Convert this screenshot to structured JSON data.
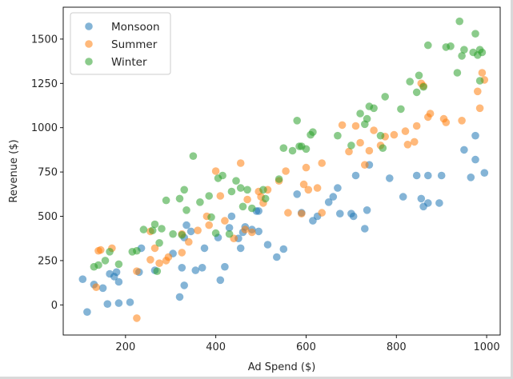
{
  "chart_data": {
    "type": "scatter",
    "title": "",
    "xlabel": "Ad Spend ($)",
    "ylabel": "Revenue ($)",
    "xlim": [
      62,
      1030
    ],
    "ylim": [
      -170,
      1680
    ],
    "xticks": [
      200,
      400,
      600,
      800,
      1000
    ],
    "yticks": [
      0,
      250,
      500,
      750,
      1000,
      1250,
      1500
    ],
    "grid": false,
    "legend_position": "upper left",
    "marker_alpha": 0.55,
    "series": [
      {
        "name": "Monsoon",
        "color": "#1f77b4",
        "points": [
          [
            105,
            145
          ],
          [
            115,
            -40
          ],
          [
            130,
            115
          ],
          [
            150,
            95
          ],
          [
            160,
            5
          ],
          [
            165,
            175
          ],
          [
            175,
            160
          ],
          [
            180,
            185
          ],
          [
            185,
            10
          ],
          [
            185,
            130
          ],
          [
            210,
            15
          ],
          [
            230,
            185
          ],
          [
            235,
            320
          ],
          [
            265,
            195
          ],
          [
            305,
            290
          ],
          [
            320,
            45
          ],
          [
            325,
            210
          ],
          [
            330,
            110
          ],
          [
            330,
            380
          ],
          [
            335,
            450
          ],
          [
            345,
            415
          ],
          [
            355,
            195
          ],
          [
            370,
            210
          ],
          [
            375,
            320
          ],
          [
            405,
            380
          ],
          [
            410,
            140
          ],
          [
            420,
            215
          ],
          [
            430,
            435
          ],
          [
            435,
            500
          ],
          [
            450,
            375
          ],
          [
            455,
            320
          ],
          [
            460,
            410
          ],
          [
            465,
            440
          ],
          [
            480,
            425
          ],
          [
            490,
            530
          ],
          [
            495,
            530
          ],
          [
            495,
            415
          ],
          [
            515,
            340
          ],
          [
            535,
            270
          ],
          [
            550,
            315
          ],
          [
            580,
            625
          ],
          [
            590,
            520
          ],
          [
            615,
            475
          ],
          [
            625,
            500
          ],
          [
            650,
            580
          ],
          [
            660,
            610
          ],
          [
            670,
            660
          ],
          [
            675,
            515
          ],
          [
            700,
            515
          ],
          [
            705,
            500
          ],
          [
            710,
            730
          ],
          [
            730,
            430
          ],
          [
            735,
            535
          ],
          [
            740,
            790
          ],
          [
            785,
            715
          ],
          [
            815,
            610
          ],
          [
            845,
            730
          ],
          [
            855,
            600
          ],
          [
            860,
            555
          ],
          [
            870,
            575
          ],
          [
            870,
            730
          ],
          [
            895,
            575
          ],
          [
            900,
            730
          ],
          [
            950,
            875
          ],
          [
            965,
            720
          ],
          [
            975,
            955
          ],
          [
            975,
            820
          ],
          [
            995,
            745
          ]
        ]
      },
      {
        "name": "Summer",
        "color": "#ff7f0e",
        "points": [
          [
            135,
            100
          ],
          [
            140,
            305
          ],
          [
            145,
            310
          ],
          [
            170,
            320
          ],
          [
            225,
            -75
          ],
          [
            225,
            190
          ],
          [
            255,
            415
          ],
          [
            255,
            255
          ],
          [
            265,
            320
          ],
          [
            275,
            235
          ],
          [
            290,
            250
          ],
          [
            295,
            270
          ],
          [
            325,
            295
          ],
          [
            325,
            400
          ],
          [
            340,
            355
          ],
          [
            360,
            420
          ],
          [
            380,
            500
          ],
          [
            385,
            450
          ],
          [
            400,
            755
          ],
          [
            410,
            615
          ],
          [
            420,
            475
          ],
          [
            440,
            375
          ],
          [
            455,
            800
          ],
          [
            465,
            425
          ],
          [
            470,
            595
          ],
          [
            480,
            410
          ],
          [
            495,
            640
          ],
          [
            500,
            610
          ],
          [
            505,
            575
          ],
          [
            515,
            650
          ],
          [
            540,
            700
          ],
          [
            555,
            755
          ],
          [
            560,
            520
          ],
          [
            590,
            515
          ],
          [
            595,
            680
          ],
          [
            600,
            775
          ],
          [
            605,
            650
          ],
          [
            625,
            660
          ],
          [
            635,
            520
          ],
          [
            635,
            800
          ],
          [
            680,
            1015
          ],
          [
            695,
            865
          ],
          [
            710,
            1010
          ],
          [
            720,
            915
          ],
          [
            730,
            790
          ],
          [
            740,
            870
          ],
          [
            750,
            985
          ],
          [
            765,
            900
          ],
          [
            775,
            950
          ],
          [
            795,
            960
          ],
          [
            820,
            980
          ],
          [
            825,
            905
          ],
          [
            840,
            920
          ],
          [
            845,
            1010
          ],
          [
            855,
            1250
          ],
          [
            860,
            1235
          ],
          [
            870,
            1060
          ],
          [
            875,
            1080
          ],
          [
            905,
            1050
          ],
          [
            910,
            1030
          ],
          [
            945,
            1040
          ],
          [
            980,
            1205
          ],
          [
            985,
            1110
          ],
          [
            990,
            1310
          ],
          [
            995,
            1270
          ]
        ]
      },
      {
        "name": "Winter",
        "color": "#2ca02c",
        "points": [
          [
            130,
            215
          ],
          [
            140,
            225
          ],
          [
            155,
            250
          ],
          [
            165,
            300
          ],
          [
            185,
            230
          ],
          [
            215,
            300
          ],
          [
            225,
            305
          ],
          [
            240,
            425
          ],
          [
            260,
            420
          ],
          [
            265,
            455
          ],
          [
            270,
            190
          ],
          [
            275,
            350
          ],
          [
            280,
            430
          ],
          [
            290,
            590
          ],
          [
            305,
            400
          ],
          [
            320,
            600
          ],
          [
            325,
            395
          ],
          [
            330,
            650
          ],
          [
            335,
            535
          ],
          [
            350,
            840
          ],
          [
            365,
            580
          ],
          [
            385,
            615
          ],
          [
            390,
            495
          ],
          [
            400,
            405
          ],
          [
            405,
            715
          ],
          [
            415,
            730
          ],
          [
            430,
            400
          ],
          [
            435,
            640
          ],
          [
            445,
            700
          ],
          [
            455,
            660
          ],
          [
            460,
            555
          ],
          [
            470,
            650
          ],
          [
            480,
            545
          ],
          [
            505,
            650
          ],
          [
            510,
            600
          ],
          [
            540,
            710
          ],
          [
            550,
            885
          ],
          [
            570,
            870
          ],
          [
            580,
            1040
          ],
          [
            585,
            895
          ],
          [
            590,
            895
          ],
          [
            600,
            880
          ],
          [
            610,
            960
          ],
          [
            615,
            975
          ],
          [
            670,
            955
          ],
          [
            700,
            900
          ],
          [
            720,
            1080
          ],
          [
            730,
            1020
          ],
          [
            735,
            1050
          ],
          [
            740,
            1120
          ],
          [
            750,
            1110
          ],
          [
            765,
            955
          ],
          [
            770,
            885
          ],
          [
            775,
            1175
          ],
          [
            810,
            1105
          ],
          [
            830,
            1260
          ],
          [
            845,
            1200
          ],
          [
            850,
            1295
          ],
          [
            860,
            1230
          ],
          [
            870,
            1465
          ],
          [
            910,
            1455
          ],
          [
            920,
            1460
          ],
          [
            935,
            1310
          ],
          [
            940,
            1600
          ],
          [
            945,
            1405
          ],
          [
            950,
            1440
          ],
          [
            970,
            1425
          ],
          [
            975,
            1530
          ],
          [
            980,
            1410
          ],
          [
            985,
            1440
          ],
          [
            990,
            1425
          ],
          [
            985,
            1265
          ]
        ]
      }
    ]
  }
}
